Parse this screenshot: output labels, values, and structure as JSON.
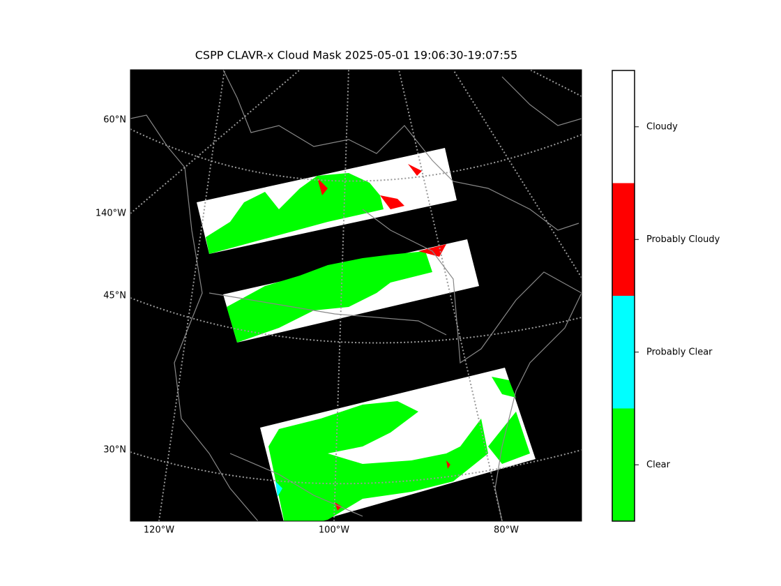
{
  "title": "CSPP CLAVR-x Cloud Mask 2025-05-01 19:06:30-19:07:55",
  "map": {
    "lat_labels": [
      "60°N",
      "45°N",
      "30°N"
    ],
    "lon_labels": [
      "140°W",
      "120°W",
      "100°W",
      "80°W"
    ]
  },
  "colorbar": {
    "classes": [
      {
        "label": "Clear",
        "color": "#00ff00"
      },
      {
        "label": "Probably Clear",
        "color": "#00ffff"
      },
      {
        "label": "Probably Cloudy",
        "color": "#ff0000"
      },
      {
        "label": "Cloudy",
        "color": "#ffffff"
      }
    ]
  }
}
